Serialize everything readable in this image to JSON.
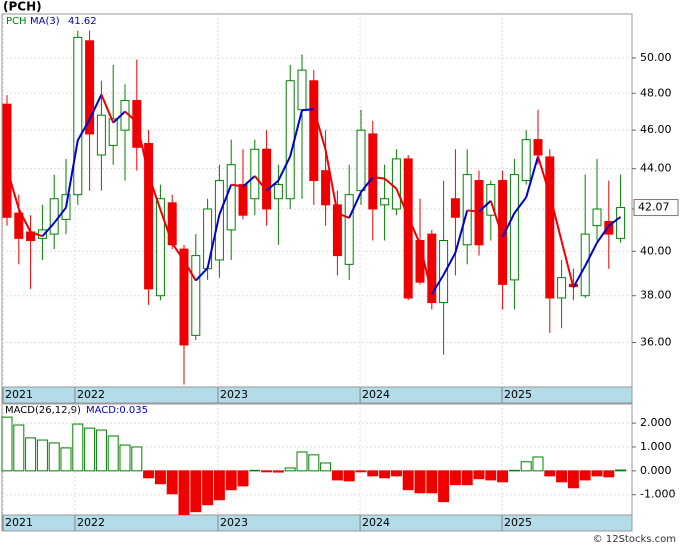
{
  "chart_data": [
    {
      "type": "candlestick",
      "title": "(PCH)",
      "log_scale": true,
      "grid": true,
      "categories": [
        null,
        null,
        null,
        null,
        null,
        null,
        null,
        null,
        null,
        null,
        null,
        null,
        null,
        null,
        null,
        null,
        null,
        null,
        null,
        null,
        null,
        null,
        null,
        null,
        null,
        null,
        null,
        null,
        null,
        null,
        null,
        null,
        null,
        null,
        null,
        null,
        null,
        null,
        null,
        null,
        null,
        null,
        null,
        null,
        null,
        null,
        null,
        null,
        null,
        null,
        null,
        null,
        null
      ],
      "ylim": [
        34.2,
        52.6
      ],
      "yticks": [
        {
          "value": 36,
          "label": "36.00"
        },
        {
          "value": 38,
          "label": "38.00"
        },
        {
          "value": 40,
          "label": "40.00"
        },
        {
          "value": 42,
          "label": "42.00"
        },
        {
          "value": 44,
          "label": "44.00"
        },
        {
          "value": 46,
          "label": "46.00"
        },
        {
          "value": 48,
          "label": "48.00"
        },
        {
          "value": 50,
          "label": "50.00"
        }
      ],
      "xticks": [
        {
          "value": -0.34,
          "label": "2021"
        },
        {
          "value": 5.76,
          "label": "2022"
        },
        {
          "value": 17.88,
          "label": "2023"
        },
        {
          "value": 29.92,
          "label": "2024"
        },
        {
          "value": 41.95,
          "label": "2025"
        }
      ],
      "series": [
        {
          "name": "PCH",
          "up_color": "#008000",
          "down_color": "#ee0000",
          "open": [
            47.4,
            41.8,
            40.9,
            40.6,
            40.8,
            41.5,
            42.7,
            51.0,
            44.7,
            45.2,
            46.0,
            47.6,
            45.3,
            38.0,
            42.3,
            40.1,
            36.3,
            39.2,
            39.6,
            41.0,
            43.2,
            42.5,
            45.0,
            42.5,
            42.5,
            47.1,
            48.7,
            43.9,
            42.2,
            39.4,
            42.9,
            45.8,
            42.2,
            42.0,
            44.5,
            40.5,
            40.8,
            37.7,
            42.5,
            40.3,
            43.4,
            41.7,
            43.4,
            38.7,
            43.4,
            45.5,
            44.6,
            37.9,
            38.5,
            38.0,
            41.2,
            41.4,
            40.6
          ],
          "high": [
            47.9,
            42.7,
            41.7,
            42.2,
            43.7,
            44.5,
            51.6,
            51.6,
            48.7,
            49.6,
            48.5,
            49.9,
            46.0,
            43.2,
            42.7,
            40.3,
            40.8,
            42.5,
            44.2,
            45.5,
            45.0,
            45.5,
            46.0,
            44.2,
            49.6,
            50.2,
            49.3,
            46.0,
            42.9,
            44.2,
            47.1,
            46.5,
            44.2,
            45.0,
            44.7,
            42.5,
            41.0,
            43.4,
            45.0,
            45.0,
            43.9,
            43.4,
            43.9,
            44.5,
            46.0,
            47.1,
            45.0,
            39.6,
            39.2,
            43.7,
            44.5,
            43.4,
            43.7
          ],
          "low": [
            41.2,
            39.4,
            38.3,
            39.6,
            40.1,
            40.8,
            42.2,
            42.9,
            42.9,
            44.2,
            43.4,
            43.9,
            37.6,
            37.8,
            40.1,
            34.3,
            36.1,
            38.7,
            38.8,
            39.6,
            41.5,
            41.7,
            41.2,
            40.3,
            42.0,
            42.5,
            42.2,
            41.2,
            38.9,
            38.7,
            42.2,
            40.5,
            40.5,
            41.7,
            37.8,
            38.5,
            37.4,
            35.5,
            38.9,
            39.4,
            39.8,
            40.5,
            37.4,
            37.4,
            43.2,
            44.2,
            36.4,
            36.6,
            37.8,
            37.9,
            40.5,
            39.2,
            40.4
          ],
          "close": [
            41.6,
            40.6,
            40.5,
            41.0,
            42.5,
            42.7,
            51.2,
            45.8,
            46.8,
            46.6,
            47.6,
            45.1,
            38.3,
            42.5,
            40.3,
            35.9,
            39.8,
            42.0,
            43.4,
            44.2,
            41.7,
            45.0,
            42.0,
            43.2,
            48.7,
            49.3,
            43.4,
            42.2,
            39.8,
            42.7,
            46.0,
            42.0,
            42.5,
            44.5,
            37.9,
            38.6,
            37.7,
            40.5,
            41.6,
            43.7,
            40.3,
            43.2,
            38.5,
            43.7,
            45.5,
            44.7,
            37.9,
            38.8,
            38.4,
            40.8,
            42.0,
            40.8,
            42.07
          ]
        },
        {
          "name": "MA(3)",
          "up_color": "#0000cc",
          "down_color": "#ee0000",
          "values": [
            44.0,
            42.0,
            40.9,
            40.7,
            41.33,
            42.07,
            45.47,
            46.57,
            47.93,
            46.4,
            47.0,
            46.43,
            43.67,
            41.97,
            40.37,
            39.57,
            38.67,
            39.23,
            41.73,
            43.2,
            43.1,
            43.63,
            42.9,
            43.4,
            44.63,
            47.07,
            47.13,
            44.97,
            41.8,
            41.57,
            42.83,
            43.57,
            43.5,
            43.0,
            41.63,
            40.33,
            38.07,
            38.93,
            39.93,
            41.93,
            41.87,
            42.4,
            40.67,
            41.8,
            42.57,
            44.63,
            42.7,
            40.47,
            38.37,
            39.33,
            40.4,
            41.2,
            41.62
          ]
        }
      ],
      "source": "© 12Stocks.com"
    },
    {
      "type": "bar",
      "title": "MACD(26,12,9)",
      "legend": "MACD:0.035",
      "grid": true,
      "up_color": "#008000",
      "down_color": "#ee0000",
      "ylim": [
        -1.85,
        2.8
      ],
      "yticks": [
        {
          "value": 2,
          "label": "2.000"
        },
        {
          "value": 1,
          "label": "1.000"
        },
        {
          "value": 0,
          "label": "0.000"
        },
        {
          "value": -1,
          "label": "-1.000"
        }
      ],
      "xticks": [
        {
          "value": -0.34,
          "label": "2021"
        },
        {
          "value": 5.76,
          "label": "2022"
        },
        {
          "value": 17.88,
          "label": "2023"
        },
        {
          "value": 29.92,
          "label": "2024"
        },
        {
          "value": 41.95,
          "label": "2025"
        }
      ],
      "series": [
        {
          "name": "MACD",
          "values": [
            2.25,
            1.92,
            1.38,
            1.29,
            1.17,
            0.96,
            1.96,
            1.79,
            1.71,
            1.46,
            1.08,
            1.0,
            -0.29,
            -0.54,
            -0.96,
            -1.83,
            -1.71,
            -1.42,
            -1.21,
            -0.79,
            -0.63,
            0.02,
            -0.04,
            -0.05,
            0.12,
            0.79,
            0.67,
            0.33,
            -0.38,
            -0.42,
            -0.04,
            -0.21,
            -0.29,
            -0.21,
            -0.79,
            -0.92,
            -0.92,
            -1.29,
            -0.58,
            -0.58,
            -0.33,
            -0.38,
            -0.46,
            0.02,
            0.38,
            0.58,
            -0.21,
            -0.46,
            -0.71,
            -0.38,
            -0.21,
            -0.25,
            0.035
          ]
        }
      ]
    }
  ]
}
